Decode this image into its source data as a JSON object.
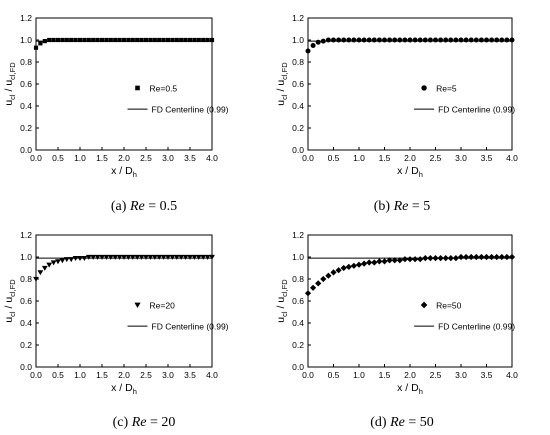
{
  "figure": {
    "charts": [
      {
        "letter": "(a) ",
        "re_label": "Re",
        "eq_value": " = 0.5",
        "legend_marker": "Re=0.5",
        "legend_line": "FD Centerline (0.99)",
        "marker": "square"
      },
      {
        "letter": "(b) ",
        "re_label": "Re",
        "eq_value": " = 5",
        "legend_marker": "Re=5",
        "legend_line": "FD Centerline (0.99)",
        "marker": "circle"
      },
      {
        "letter": "(c) ",
        "re_label": "Re",
        "eq_value": " = 20",
        "legend_marker": "Re=20",
        "legend_line": "FD Centerline (0.99)",
        "marker": "triangle-down"
      },
      {
        "letter": "(d) ",
        "re_label": "Re",
        "eq_value": " = 50",
        "legend_marker": "Re=50",
        "legend_line": "FD Centerline (0.99)",
        "marker": "diamond"
      }
    ],
    "xlabel_main": "x / D",
    "xlabel_sub": "h",
    "ylabel_num": "u",
    "ylabel_num_sub": "cl",
    "ylabel_sep": " / u",
    "ylabel_den_sub": "cl,FD"
  },
  "chart_data": [
    {
      "type": "scatter",
      "series": [
        {
          "name": "Re=0.5",
          "x": [
            0.0,
            0.1,
            0.2,
            0.3,
            0.4,
            0.5,
            0.6,
            0.7,
            0.8,
            0.9,
            1.0,
            1.1,
            1.2,
            1.3,
            1.4,
            1.5,
            1.6,
            1.7,
            1.8,
            1.9,
            2.0,
            2.1,
            2.2,
            2.3,
            2.4,
            2.5,
            2.6,
            2.7,
            2.8,
            2.9,
            3.0,
            3.1,
            3.2,
            3.3,
            3.4,
            3.5,
            3.6,
            3.7,
            3.8,
            3.9,
            4.0
          ],
          "y": [
            0.93,
            0.97,
            0.99,
            1.0,
            1.0,
            1.0,
            1.0,
            1.0,
            1.0,
            1.0,
            1.0,
            1.0,
            1.0,
            1.0,
            1.0,
            1.0,
            1.0,
            1.0,
            1.0,
            1.0,
            1.0,
            1.0,
            1.0,
            1.0,
            1.0,
            1.0,
            1.0,
            1.0,
            1.0,
            1.0,
            1.0,
            1.0,
            1.0,
            1.0,
            1.0,
            1.0,
            1.0,
            1.0,
            1.0,
            1.0,
            1.0
          ]
        },
        {
          "name": "FD Centerline (0.99)",
          "x": [
            0.0,
            4.0
          ],
          "y": [
            0.99,
            0.99
          ]
        }
      ],
      "xlim": [
        0.0,
        4.0
      ],
      "ylim": [
        0.0,
        1.2
      ],
      "xticks": [
        "0.0",
        "0.5",
        "1.0",
        "1.5",
        "2.0",
        "2.5",
        "3.0",
        "3.5",
        "4.0"
      ],
      "yticks": [
        "0.0",
        "0.2",
        "0.4",
        "0.6",
        "0.8",
        "1.0",
        "1.2"
      ],
      "legend": "middle-right"
    },
    {
      "type": "scatter",
      "series": [
        {
          "name": "Re=5",
          "x": [
            0.0,
            0.1,
            0.2,
            0.3,
            0.4,
            0.5,
            0.6,
            0.7,
            0.8,
            0.9,
            1.0,
            1.1,
            1.2,
            1.3,
            1.4,
            1.5,
            1.6,
            1.7,
            1.8,
            1.9,
            2.0,
            2.1,
            2.2,
            2.3,
            2.4,
            2.5,
            2.6,
            2.7,
            2.8,
            2.9,
            3.0,
            3.1,
            3.2,
            3.3,
            3.4,
            3.5,
            3.6,
            3.7,
            3.8,
            3.9,
            4.0
          ],
          "y": [
            0.9,
            0.95,
            0.98,
            0.99,
            1.0,
            1.0,
            1.0,
            1.0,
            1.0,
            1.0,
            1.0,
            1.0,
            1.0,
            1.0,
            1.0,
            1.0,
            1.0,
            1.0,
            1.0,
            1.0,
            1.0,
            1.0,
            1.0,
            1.0,
            1.0,
            1.0,
            1.0,
            1.0,
            1.0,
            1.0,
            1.0,
            1.0,
            1.0,
            1.0,
            1.0,
            1.0,
            1.0,
            1.0,
            1.0,
            1.0,
            1.0
          ]
        },
        {
          "name": "FD Centerline (0.99)",
          "x": [
            0.0,
            4.0
          ],
          "y": [
            0.99,
            0.99
          ]
        }
      ],
      "xlim": [
        0.0,
        4.0
      ],
      "ylim": [
        0.0,
        1.2
      ],
      "xticks": [
        "0.0",
        "0.5",
        "1.0",
        "1.5",
        "2.0",
        "2.5",
        "3.0",
        "3.5",
        "4.0"
      ],
      "yticks": [
        "0.0",
        "0.2",
        "0.4",
        "0.6",
        "0.8",
        "1.0",
        "1.2"
      ],
      "legend": "middle-right"
    },
    {
      "type": "scatter",
      "series": [
        {
          "name": "Re=20",
          "x": [
            0.0,
            0.1,
            0.2,
            0.3,
            0.4,
            0.5,
            0.6,
            0.7,
            0.8,
            0.9,
            1.0,
            1.1,
            1.2,
            1.3,
            1.4,
            1.5,
            1.6,
            1.7,
            1.8,
            1.9,
            2.0,
            2.1,
            2.2,
            2.3,
            2.4,
            2.5,
            2.6,
            2.7,
            2.8,
            2.9,
            3.0,
            3.1,
            3.2,
            3.3,
            3.4,
            3.5,
            3.6,
            3.7,
            3.8,
            3.9,
            4.0
          ],
          "y": [
            0.8,
            0.86,
            0.9,
            0.93,
            0.95,
            0.96,
            0.97,
            0.98,
            0.98,
            0.99,
            0.99,
            0.99,
            1.0,
            1.0,
            1.0,
            1.0,
            1.0,
            1.0,
            1.0,
            1.0,
            1.0,
            1.0,
            1.0,
            1.0,
            1.0,
            1.0,
            1.0,
            1.0,
            1.0,
            1.0,
            1.0,
            1.0,
            1.0,
            1.0,
            1.0,
            1.0,
            1.0,
            1.0,
            1.0,
            1.0,
            1.0
          ]
        },
        {
          "name": "FD Centerline (0.99)",
          "x": [
            0.0,
            4.0
          ],
          "y": [
            0.99,
            0.99
          ]
        }
      ],
      "xlim": [
        0.0,
        4.0
      ],
      "ylim": [
        0.0,
        1.2
      ],
      "xticks": [
        "0.0",
        "0.5",
        "1.0",
        "1.5",
        "2.0",
        "2.5",
        "3.0",
        "3.5",
        "4.0"
      ],
      "yticks": [
        "0.0",
        "0.2",
        "0.4",
        "0.6",
        "0.8",
        "1.0",
        "1.2"
      ],
      "legend": "middle-right"
    },
    {
      "type": "scatter",
      "series": [
        {
          "name": "Re=50",
          "x": [
            0.0,
            0.1,
            0.2,
            0.3,
            0.4,
            0.5,
            0.6,
            0.7,
            0.8,
            0.9,
            1.0,
            1.1,
            1.2,
            1.3,
            1.4,
            1.5,
            1.6,
            1.7,
            1.8,
            1.9,
            2.0,
            2.1,
            2.2,
            2.3,
            2.4,
            2.5,
            2.6,
            2.7,
            2.8,
            2.9,
            3.0,
            3.1,
            3.2,
            3.3,
            3.4,
            3.5,
            3.6,
            3.7,
            3.8,
            3.9,
            4.0
          ],
          "y": [
            0.67,
            0.72,
            0.76,
            0.8,
            0.83,
            0.86,
            0.88,
            0.9,
            0.91,
            0.92,
            0.93,
            0.94,
            0.95,
            0.95,
            0.96,
            0.96,
            0.97,
            0.97,
            0.97,
            0.98,
            0.98,
            0.98,
            0.98,
            0.99,
            0.99,
            0.99,
            0.99,
            0.99,
            0.99,
            0.99,
            1.0,
            1.0,
            1.0,
            1.0,
            1.0,
            1.0,
            1.0,
            1.0,
            1.0,
            1.0,
            1.0
          ]
        },
        {
          "name": "FD Centerline (0.99)",
          "x": [
            0.0,
            4.0
          ],
          "y": [
            0.99,
            0.99
          ]
        }
      ],
      "xlim": [
        0.0,
        4.0
      ],
      "ylim": [
        0.0,
        1.2
      ],
      "xticks": [
        "0.0",
        "0.5",
        "1.0",
        "1.5",
        "2.0",
        "2.5",
        "3.0",
        "3.5",
        "4.0"
      ],
      "yticks": [
        "0.0",
        "0.2",
        "0.4",
        "0.6",
        "0.8",
        "1.0",
        "1.2"
      ],
      "legend": "middle-right"
    }
  ]
}
